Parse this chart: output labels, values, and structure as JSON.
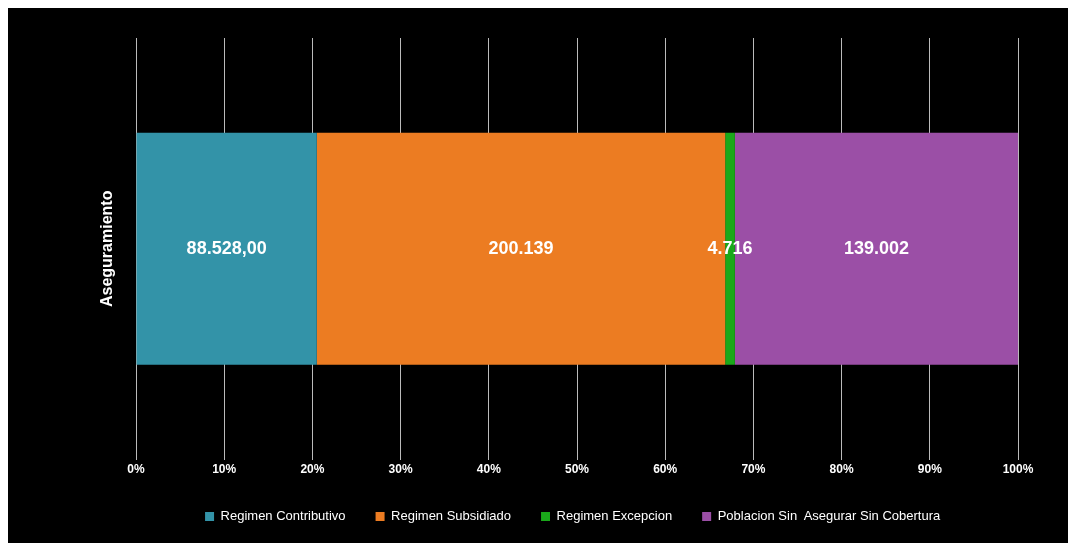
{
  "chart_data": {
    "type": "bar",
    "orientation": "horizontal",
    "stacked": true,
    "categories": [
      "Aseguramiento"
    ],
    "series": [
      {
        "name": "Regimen Contributivo",
        "color": "#3393a8",
        "values": [
          20.5
        ]
      },
      {
        "name": "Regimen Subsidiado",
        "color": "#ec7c22",
        "values": [
          46.3
        ]
      },
      {
        "name": "Regimen Excepcion",
        "color": "#1aa81a",
        "values": [
          1.1
        ]
      },
      {
        "name": "Poblacion Sin  Asegurar Sin Cobertura",
        "color": "#9b4fa6",
        "values": [
          32.1
        ]
      }
    ],
    "annotations": [
      "88.528,00",
      "200.139",
      "4.716",
      "139.002"
    ],
    "xlim": [
      0,
      100
    ],
    "xticks": [
      {
        "value": 0,
        "label": "0%"
      },
      {
        "value": 10,
        "label": "10%"
      },
      {
        "value": 20,
        "label": "20%"
      },
      {
        "value": 30,
        "label": "30%"
      },
      {
        "value": 40,
        "label": "40%"
      },
      {
        "value": 50,
        "label": "50%"
      },
      {
        "value": 60,
        "label": "60%"
      },
      {
        "value": 70,
        "label": "70%"
      },
      {
        "value": 80,
        "label": "80%"
      },
      {
        "value": 90,
        "label": "90%"
      },
      {
        "value": 100,
        "label": "100%"
      }
    ],
    "grid": "x",
    "legend": "bottom"
  }
}
